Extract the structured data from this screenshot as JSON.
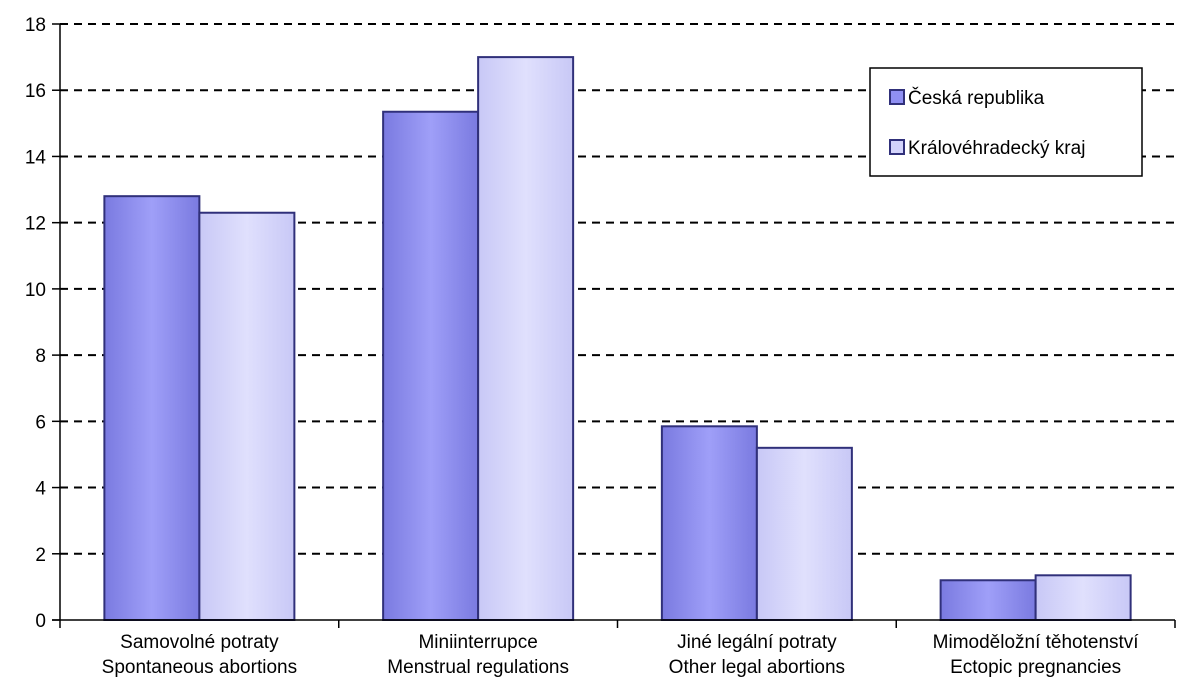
{
  "chart_data": {
    "type": "bar",
    "categories": [
      [
        "Samovolné potraty",
        "Spontaneous abortions"
      ],
      [
        "Miniinterrupce",
        "Menstrual regulations"
      ],
      [
        "Jiné legální potraty",
        "Other legal abortions"
      ],
      [
        "Mimoděložní těhotenství",
        "Ectopic pregnancies"
      ]
    ],
    "series": [
      {
        "name": "Česká republika",
        "values": [
          12.8,
          15.35,
          5.85,
          1.2
        ],
        "color": "#8f8ff2"
      },
      {
        "name": "Královéhradecký kraj",
        "values": [
          12.3,
          17.0,
          5.2,
          1.35
        ],
        "color": "#d4d4fb"
      }
    ],
    "ylim": [
      0,
      18
    ],
    "yticks": [
      0,
      2,
      4,
      6,
      8,
      10,
      12,
      14,
      16,
      18
    ],
    "grid": true,
    "legend": "top-right",
    "colors": {
      "axis": "#000000",
      "bar_border": "#30307a",
      "grid": "#000000"
    }
  }
}
